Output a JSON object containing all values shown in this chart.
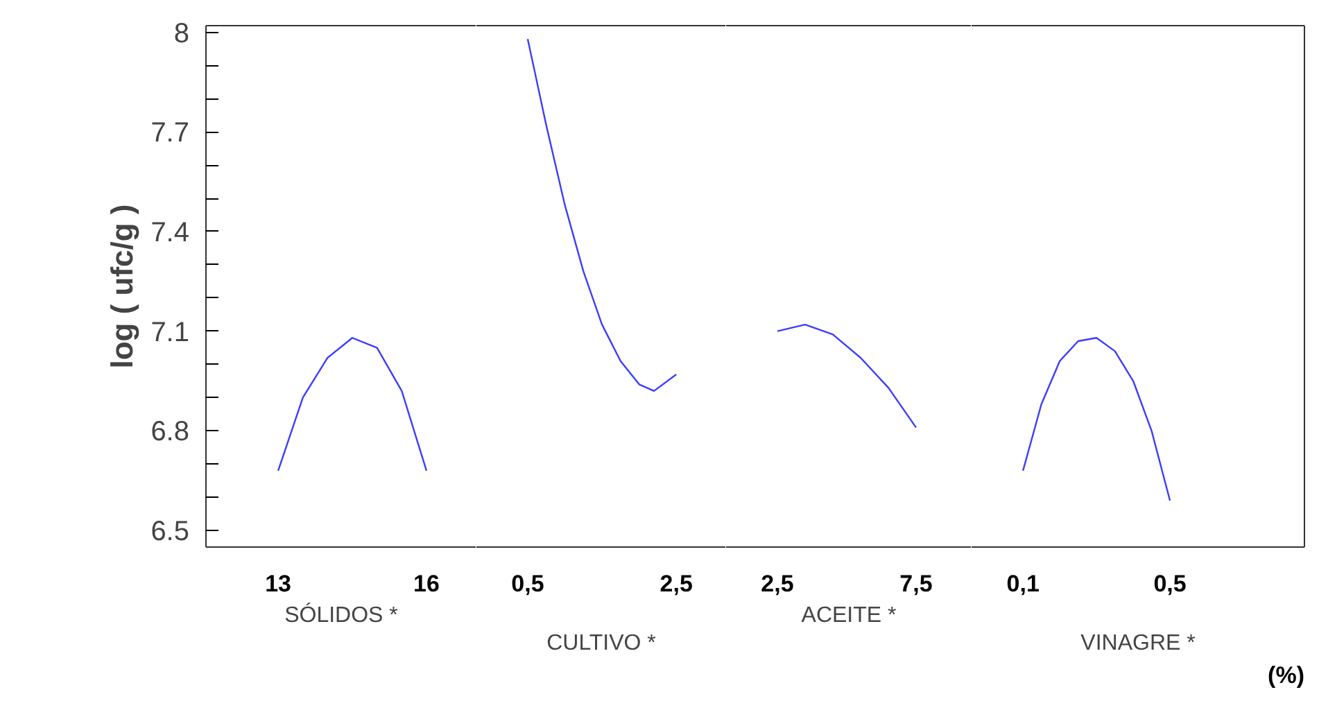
{
  "chart_data": [
    {
      "type": "line",
      "xlabel": "SÓLIDOS *",
      "ylabel": "log ( ufc/g )",
      "color": "#3c3cff",
      "xlim": [
        11.54,
        17.01
      ],
      "xticks": [
        13,
        16
      ],
      "ylim": [
        6.45,
        8.02
      ],
      "yticks": [
        6.5,
        {
          "value": 6.6,
          "label": null
        },
        {
          "value": 6.7,
          "label": null
        },
        6.8,
        {
          "value": 6.9,
          "label": null
        },
        {
          "value": 7.0,
          "label": null
        },
        7.1,
        {
          "value": 7.2,
          "label": null
        },
        {
          "value": 7.3,
          "label": null
        },
        7.4,
        {
          "value": 7.5,
          "label": null
        },
        {
          "value": 7.6,
          "label": null
        },
        7.7,
        {
          "value": 7.8,
          "label": null
        },
        {
          "value": 7.9,
          "label": null
        },
        8
      ],
      "x": [
        13,
        13.5,
        14,
        14.5,
        15,
        15.5,
        16
      ],
      "values": [
        6.68,
        6.9,
        7.02,
        7.08,
        7.05,
        6.92,
        6.68
      ]
    },
    {
      "type": "line",
      "xlabel": "CULTIVO *",
      "color": "#3c3cff",
      "xlim": [
        -0.19,
        3.17
      ],
      "xticks": [
        {
          "value": 0.5,
          "label": "0,5"
        },
        {
          "value": 2.5,
          "label": "2,5"
        }
      ],
      "ylim": [
        6.45,
        8.02
      ],
      "yticks": [
        6.5,
        6.8,
        7.1,
        7.4,
        7.7,
        8
      ],
      "tick_labels": "x",
      "x": [
        0.5,
        0.75,
        1.0,
        1.25,
        1.5,
        1.75,
        2.0,
        2.2,
        2.5
      ],
      "values": [
        7.98,
        7.72,
        7.48,
        7.28,
        7.12,
        7.01,
        6.94,
        6.92,
        6.97
      ]
    },
    {
      "type": "line",
      "xlabel": "ACEITE *",
      "color": "#3c3cff",
      "xlim": [
        0.65,
        9.5
      ],
      "xticks": [
        {
          "value": 2.5,
          "label": "2,5"
        },
        {
          "value": 7.5,
          "label": "7,5"
        }
      ],
      "ylim": [
        6.45,
        8.02
      ],
      "yticks": [
        6.5,
        6.8,
        7.1,
        7.4,
        7.7,
        8
      ],
      "tick_labels": "x",
      "x": [
        2.5,
        3.5,
        4.5,
        5.5,
        6.5,
        7.5
      ],
      "values": [
        7.1,
        7.12,
        7.09,
        7.02,
        6.93,
        6.81
      ]
    },
    {
      "type": "line",
      "xlabel": "VINAGRE *",
      "color": "#3c3cff",
      "xlim": [
        -0.04,
        0.866
      ],
      "xticks": [
        {
          "value": 0.1,
          "label": "0,1"
        },
        {
          "value": 0.5,
          "label": "0,5"
        }
      ],
      "ylim": [
        6.45,
        8.02
      ],
      "yticks": [
        6.5,
        6.8,
        7.1,
        7.4,
        7.7,
        8
      ],
      "tick_labels": "x",
      "annotations": [
        "(%)"
      ],
      "x": [
        0.1,
        0.15,
        0.2,
        0.25,
        0.3,
        0.35,
        0.4,
        0.45,
        0.5
      ],
      "values": [
        6.68,
        6.88,
        7.01,
        7.07,
        7.08,
        7.04,
        6.95,
        6.8,
        6.59
      ]
    }
  ]
}
